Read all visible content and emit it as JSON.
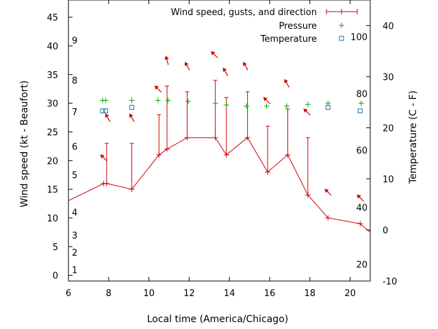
{
  "chart_data": {
    "type": "line",
    "title": "",
    "xlabel": "Local time (America/Chicago)",
    "ylabel": "Wind speed (kt - Beaufort)",
    "y2label": "Temperature (C - F)",
    "xlim": [
      6,
      21
    ],
    "ylim": [
      -1,
      48
    ],
    "y2lim": [
      -10,
      45
    ],
    "x_ticks": [
      6,
      8,
      10,
      12,
      14,
      16,
      18,
      20
    ],
    "y_ticks": [
      0,
      5,
      10,
      15,
      20,
      25,
      30,
      35,
      40,
      45
    ],
    "y2_ticks": [
      -10,
      0,
      10,
      20,
      30,
      40
    ],
    "beaufort_labels": [
      {
        "label": "1",
        "y": 1
      },
      {
        "label": "2",
        "y": 4
      },
      {
        "label": "3",
        "y": 7
      },
      {
        "label": "4",
        "y": 11
      },
      {
        "label": "5",
        "y": 17.5
      },
      {
        "label": "6",
        "y": 22.5
      },
      {
        "label": "7",
        "y": 28.5
      },
      {
        "label": "8",
        "y": 34
      },
      {
        "label": "9",
        "y": 41
      }
    ],
    "fahrenheit_labels": [
      {
        "label": "20",
        "y2": -6.7
      },
      {
        "label": "40",
        "y2": 4.4
      },
      {
        "label": "60",
        "y2": 15.6
      },
      {
        "label": "80",
        "y2": 26.7
      },
      {
        "label": "100",
        "y2": 37.8
      }
    ],
    "legend": {
      "placement": "top-right",
      "entries": [
        "Wind speed, gusts, and direction",
        "Pressure",
        "Temperature"
      ]
    },
    "series": [
      {
        "name": "Wind speed, gusts, and direction",
        "color": "#cc0000",
        "x": [
          6,
          7.75,
          7.9,
          9.15,
          10.5,
          10.9,
          11.9,
          13.3,
          13.85,
          14.9,
          15.9,
          16.9,
          17.9,
          18.9,
          20.5,
          21
        ],
        "values": [
          13,
          16,
          16,
          15,
          21,
          22,
          24,
          24,
          21,
          24,
          18,
          21,
          14,
          10,
          9,
          7.5
        ],
        "gusts": [
          null,
          null,
          23,
          23,
          28,
          33,
          32,
          34,
          31,
          32,
          26,
          29,
          24,
          null,
          null,
          null
        ],
        "direction_arrows": [
          {
            "x": 7.75,
            "y": 20.5,
            "deg": 315
          },
          {
            "x": 7.95,
            "y": 27.5,
            "deg": 330
          },
          {
            "x": 9.15,
            "y": 27.5,
            "deg": 330
          },
          {
            "x": 10.45,
            "y": 32.5,
            "deg": 315
          },
          {
            "x": 10.9,
            "y": 37.5,
            "deg": 345
          },
          {
            "x": 11.9,
            "y": 36.5,
            "deg": 330
          },
          {
            "x": 13.25,
            "y": 38.5,
            "deg": 315
          },
          {
            "x": 13.8,
            "y": 35.5,
            "deg": 330
          },
          {
            "x": 14.8,
            "y": 36.5,
            "deg": 330
          },
          {
            "x": 15.85,
            "y": 30.5,
            "deg": 315
          },
          {
            "x": 16.85,
            "y": 33.5,
            "deg": 330
          },
          {
            "x": 17.85,
            "y": 28.5,
            "deg": 315
          },
          {
            "x": 18.9,
            "y": 14.5,
            "deg": 315
          },
          {
            "x": 20.5,
            "y": 13.5,
            "deg": 315
          }
        ]
      },
      {
        "name": "Pressure",
        "color": "#00aa00",
        "x": [
          7.7,
          7.85,
          9.15,
          10.45,
          10.95,
          11.95,
          13.3,
          13.85,
          14.85,
          15.85,
          16.85,
          17.9,
          18.9,
          20.55
        ],
        "values": [
          30.5,
          30.5,
          30.5,
          30.5,
          30.5,
          30.3,
          30,
          29.7,
          29.5,
          29.5,
          29.5,
          29.8,
          30,
          30
        ]
      },
      {
        "name": "Temperature",
        "color": "#1a6fb0",
        "x": [
          7.7,
          7.85,
          9.15,
          18.9,
          20.5
        ],
        "values": [
          23.3,
          23.3,
          24,
          24,
          23.3
        ]
      }
    ],
    "grid": false
  }
}
